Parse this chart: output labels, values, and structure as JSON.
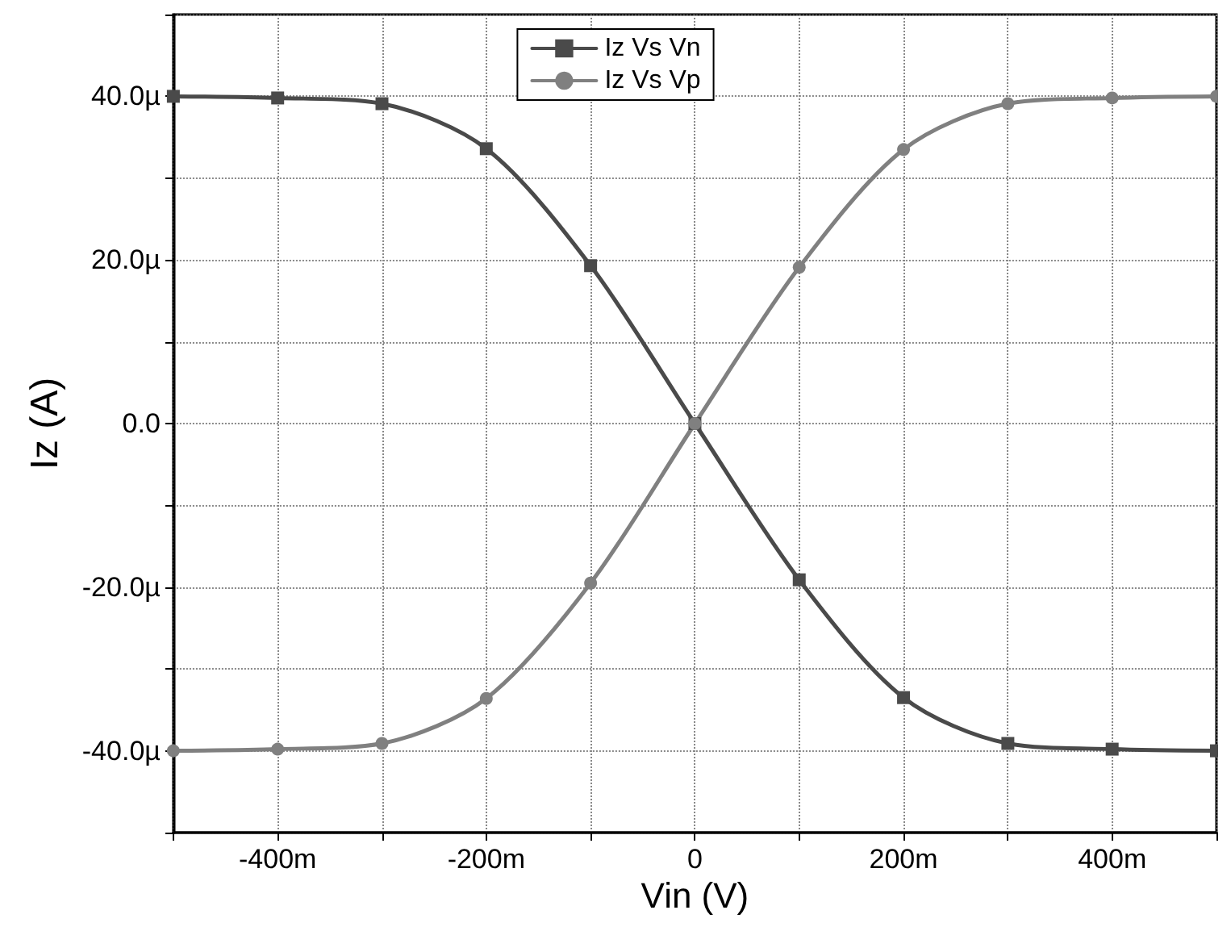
{
  "chart_data": {
    "type": "line",
    "xlabel": "Vin (V)",
    "ylabel": "Iz (A)",
    "x": [
      -500,
      -400,
      -300,
      -200,
      -100,
      0,
      100,
      200,
      300,
      400,
      500
    ],
    "series": [
      {
        "name": "Iz Vs Vn",
        "color": "#4a4a4a",
        "marker": "square",
        "values": [
          40,
          39.8,
          39.1,
          33.6,
          19.3,
          0,
          -19.1,
          -33.5,
          -39.1,
          -39.8,
          -40
        ]
      },
      {
        "name": "Iz Vs Vp",
        "color": "#808080",
        "marker": "circle",
        "values": [
          -40,
          -39.8,
          -39.1,
          -33.6,
          -19.5,
          0,
          19.1,
          33.5,
          39.1,
          39.8,
          40
        ]
      }
    ],
    "xlim": [
      -500,
      500
    ],
    "xticks": [
      {
        "value": -500,
        "label": null
      },
      {
        "value": -400,
        "label": "-400m"
      },
      {
        "value": -300,
        "label": null
      },
      {
        "value": -200,
        "label": "-200m"
      },
      {
        "value": -100,
        "label": null
      },
      0,
      {
        "value": 100,
        "label": null
      },
      {
        "value": 200,
        "label": "200m"
      },
      {
        "value": 300,
        "label": null
      },
      {
        "value": 400,
        "label": "400m"
      },
      {
        "value": 500,
        "label": null
      }
    ],
    "ylim": [
      -50,
      50
    ],
    "yticks": [
      {
        "value": -50,
        "label": null
      },
      {
        "value": -40,
        "label": "-40.0µ"
      },
      {
        "value": -30,
        "label": null
      },
      {
        "value": -20,
        "label": "-20.0µ"
      },
      {
        "value": -10,
        "label": null
      },
      {
        "value": 0,
        "label": "0.0"
      },
      {
        "value": 10,
        "label": null
      },
      {
        "value": 20,
        "label": "20.0µ"
      },
      {
        "value": 30,
        "label": null
      },
      {
        "value": 40,
        "label": "40.0µ"
      },
      {
        "value": 50,
        "label": null
      }
    ],
    "grid": true,
    "legend": "top",
    "line_style": "solid"
  }
}
